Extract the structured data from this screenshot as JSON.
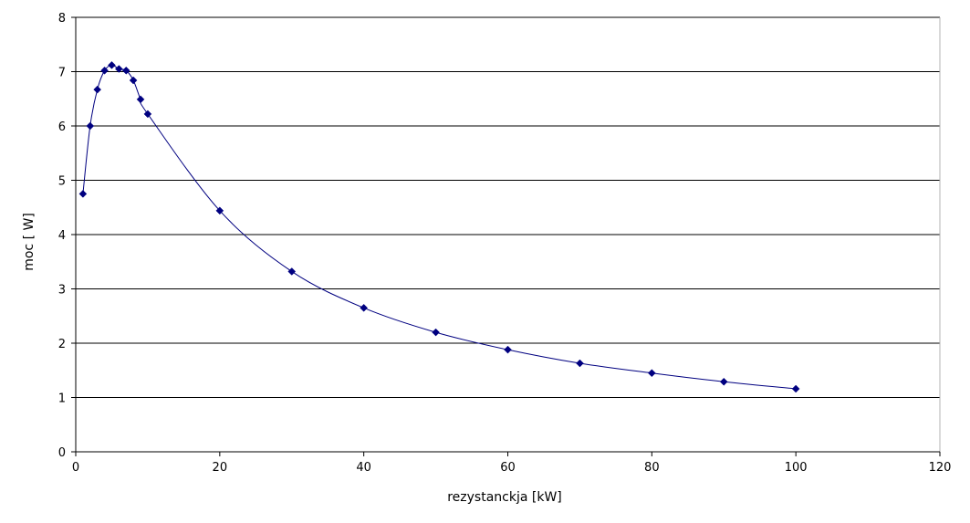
{
  "chart_data": {
    "type": "scatter",
    "title": "",
    "xlabel": "rezystanckja [kW]",
    "ylabel": "moc [ W]",
    "xlim": [
      0,
      120
    ],
    "ylim": [
      0,
      8
    ],
    "x_ticks": [
      0,
      20,
      40,
      60,
      80,
      100,
      120
    ],
    "y_ticks": [
      0,
      1,
      2,
      3,
      4,
      5,
      6,
      7,
      8
    ],
    "grid": "horizontal",
    "legend": "none",
    "smooth_line": true,
    "series": [
      {
        "color": "#000080",
        "marker": "diamond",
        "x": [
          1,
          2,
          3,
          4,
          5,
          6,
          7,
          8,
          9,
          10,
          20,
          30,
          40,
          50,
          60,
          70,
          80,
          90,
          100
        ],
        "y": [
          4.75,
          6.0,
          6.67,
          7.02,
          7.12,
          7.05,
          7.02,
          6.84,
          6.49,
          6.22,
          4.44,
          3.32,
          2.65,
          2.2,
          1.88,
          1.63,
          1.45,
          1.29,
          1.16
        ]
      }
    ]
  }
}
